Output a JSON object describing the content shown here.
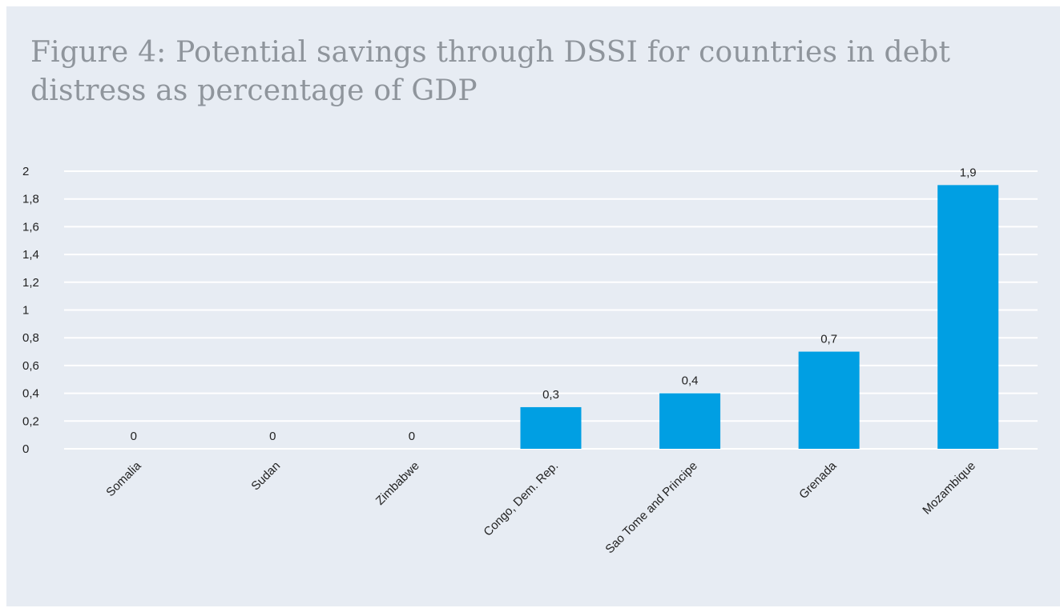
{
  "title": "Figure 4: Potential savings through DSSI for countries in debt distress as percentage of GDP",
  "colors": {
    "bar": "#009fe3",
    "background": "#e7ecf3",
    "gridline": "#ffffff",
    "title": "#8f959c"
  },
  "chart_data": {
    "type": "bar",
    "title": "Figure 4: Potential savings through DSSI for countries in debt distress as percentage of GDP",
    "xlabel": "",
    "ylabel": "",
    "categories": [
      "Somalia",
      "Sudan",
      "Zimbabwe",
      "Congo, Dem. Rep.",
      "Sao Tome and Principe",
      "Grenada",
      "Mozambique"
    ],
    "values": [
      0,
      0,
      0,
      0.3,
      0.4,
      0.7,
      1.9
    ],
    "value_labels": [
      "0",
      "0",
      "0",
      "0,3",
      "0,4",
      "0,7",
      "1,9"
    ],
    "ylim": [
      0,
      2
    ],
    "yticks": [
      0,
      0.2,
      0.4,
      0.6,
      0.8,
      1,
      1.2,
      1.4,
      1.6,
      1.8,
      2
    ],
    "ytick_labels": [
      "0",
      "0,2",
      "0,4",
      "0,6",
      "0,8",
      "1",
      "1,2",
      "1,4",
      "1,6",
      "1,8",
      "2"
    ],
    "grid": true,
    "legend": "none"
  }
}
